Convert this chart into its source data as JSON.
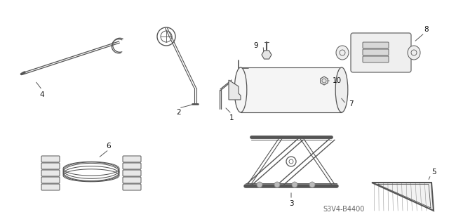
{
  "bg_color": "#ffffff",
  "line_color": "#555555",
  "label_color": "#111111",
  "diagram_code": "S3V4-B4400",
  "fig_width": 6.4,
  "fig_height": 3.19,
  "dpi": 100
}
